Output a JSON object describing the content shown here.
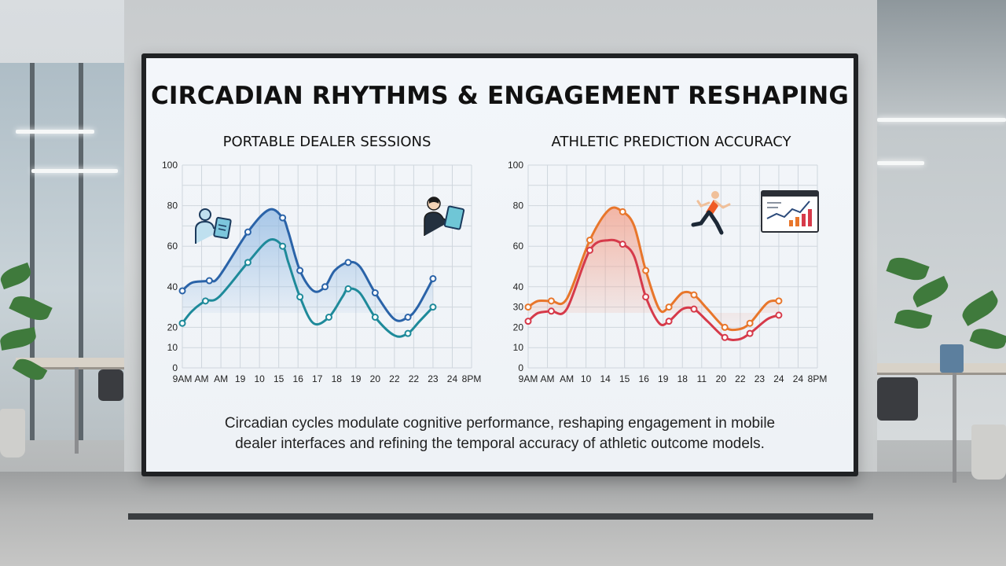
{
  "title": "CIRCADIAN RHYTHMS & ENGAGEMENT RESHAPING",
  "caption": {
    "line1": "Circadian cycles modulate cognitive performance, reshaping engagement in mobile",
    "line2": "dealer interfaces and refining the temporal accuracy of athletic outcome models."
  },
  "colors": {
    "left_upper": "#2a63a8",
    "left_lower": "#1e8a9a",
    "left_fill": "#8fb8e2",
    "right_upper": "#e8762b",
    "right_lower": "#d63a4a",
    "right_fill": "#f2a08a"
  },
  "icons": {
    "left_1": "person-tablet-icon",
    "left_2": "person-tablet-icon",
    "right_1": "runner-icon",
    "right_2": "analytics-dashboard-icon"
  },
  "chart_data": [
    {
      "type": "line",
      "title": "PORTABLE DEALER SESSIONS",
      "categories": [
        "9AM",
        "AM",
        "AM",
        "19",
        "10",
        "15",
        "16",
        "17",
        "18",
        "19",
        "20",
        "22",
        "22",
        "23",
        "24",
        "8PM"
      ],
      "yticks": [
        0,
        10,
        20,
        40,
        60,
        80,
        100
      ],
      "series": [
        {
          "points": [
            [
              0,
              38
            ],
            [
              0.5,
              42
            ],
            [
              1.4,
              43
            ],
            [
              1.9,
              45
            ],
            [
              3.4,
              67
            ],
            [
              4.5,
              78
            ],
            [
              5.2,
              74
            ],
            [
              5.5,
              67
            ],
            [
              6.1,
              48
            ],
            [
              6.8,
              38
            ],
            [
              7.4,
              40
            ],
            [
              7.9,
              48
            ],
            [
              8.6,
              52
            ],
            [
              9.2,
              50
            ],
            [
              10.0,
              37
            ],
            [
              11.0,
              24
            ],
            [
              11.7,
              25
            ],
            [
              12.2,
              30
            ],
            [
              13.0,
              44
            ]
          ]
        },
        {
          "points": [
            [
              0,
              22
            ],
            [
              0.5,
              28
            ],
            [
              1.2,
              33
            ],
            [
              1.9,
              35
            ],
            [
              3.4,
              52
            ],
            [
              4.5,
              63
            ],
            [
              5.2,
              60
            ],
            [
              5.5,
              52
            ],
            [
              6.1,
              35
            ],
            [
              6.8,
              22
            ],
            [
              7.6,
              25
            ],
            [
              8.3,
              35
            ],
            [
              8.6,
              39
            ],
            [
              9.2,
              37
            ],
            [
              10.0,
              25
            ],
            [
              11.0,
              16
            ],
            [
              11.7,
              17
            ],
            [
              12.3,
              23
            ],
            [
              13.0,
              30
            ]
          ]
        }
      ]
    },
    {
      "type": "line",
      "title": "ATHLETIC PREDICTION ACCURACY",
      "categories": [
        "9AM",
        "AM",
        "AM",
        "10",
        "14",
        "15",
        "16",
        "19",
        "18",
        "11",
        "20",
        "22",
        "23",
        "24",
        "24",
        "8PM"
      ],
      "yticks": [
        0,
        10,
        20,
        30,
        40,
        60,
        80,
        100
      ],
      "series": [
        {
          "points": [
            [
              0,
              30
            ],
            [
              0.5,
              33
            ],
            [
              1.2,
              33
            ],
            [
              2.0,
              34
            ],
            [
              3.2,
              63
            ],
            [
              4.2,
              78
            ],
            [
              4.9,
              77
            ],
            [
              5.5,
              70
            ],
            [
              6.1,
              48
            ],
            [
              6.8,
              29
            ],
            [
              7.3,
              30
            ],
            [
              8.0,
              37
            ],
            [
              8.6,
              36
            ],
            [
              9.3,
              29
            ],
            [
              10.2,
              20
            ],
            [
              10.9,
              19
            ],
            [
              11.5,
              22
            ],
            [
              12.4,
              32
            ],
            [
              13.0,
              33
            ]
          ]
        },
        {
          "points": [
            [
              0,
              23
            ],
            [
              0.5,
              27
            ],
            [
              1.2,
              28
            ],
            [
              2.0,
              29
            ],
            [
              3.2,
              58
            ],
            [
              4.2,
              63
            ],
            [
              4.9,
              61
            ],
            [
              5.5,
              55
            ],
            [
              6.1,
              35
            ],
            [
              6.8,
              22
            ],
            [
              7.3,
              23
            ],
            [
              8.0,
              29
            ],
            [
              8.6,
              29
            ],
            [
              9.3,
              23
            ],
            [
              10.2,
              15
            ],
            [
              10.9,
              14
            ],
            [
              11.5,
              17
            ],
            [
              12.4,
              24
            ],
            [
              13.0,
              26
            ]
          ]
        }
      ]
    }
  ]
}
